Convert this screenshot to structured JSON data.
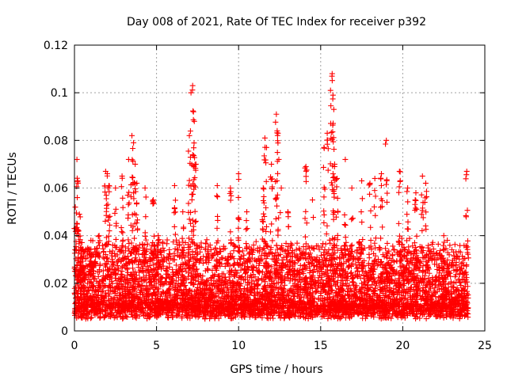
{
  "chart_data": {
    "type": "scatter",
    "title": "Day 008 of 2021, Rate Of TEC Index for receiver p392",
    "xlabel": "GPS time / hours",
    "ylabel": "ROTI / TECUs",
    "xlim": [
      0,
      25
    ],
    "ylim": [
      0,
      0.12
    ],
    "xticks": [
      0,
      5,
      10,
      15,
      20,
      25
    ],
    "xtick_labels": [
      "0",
      "5",
      "10",
      "15",
      "20",
      "25"
    ],
    "yticks": [
      0,
      0.02,
      0.04,
      0.06,
      0.08,
      0.1,
      0.12
    ],
    "ytick_labels": [
      "0",
      "0.02",
      "0.04",
      "0.06",
      "0.08",
      "0.1",
      "0.12"
    ],
    "grid": true,
    "marker": "+",
    "color": "#ff0000",
    "series": [
      {
        "name": "ROTI",
        "points": [
          [
            0.05,
            0.052
          ],
          [
            0.15,
            0.072
          ],
          [
            0.2,
            0.063
          ],
          [
            0.3,
            0.049
          ],
          [
            0.4,
            0.035
          ],
          [
            1.0,
            0.038
          ],
          [
            1.5,
            0.04
          ],
          [
            1.9,
            0.067
          ],
          [
            2.0,
            0.066
          ],
          [
            2.1,
            0.061
          ],
          [
            2.5,
            0.06
          ],
          [
            2.9,
            0.065
          ],
          [
            3.3,
            0.072
          ],
          [
            3.5,
            0.082
          ],
          [
            3.6,
            0.079
          ],
          [
            3.7,
            0.07
          ],
          [
            3.8,
            0.062
          ],
          [
            4.3,
            0.06
          ],
          [
            4.8,
            0.055
          ],
          [
            5.1,
            0.04
          ],
          [
            6.1,
            0.061
          ],
          [
            6.6,
            0.05
          ],
          [
            7.0,
            0.082
          ],
          [
            7.1,
            0.1
          ],
          [
            7.2,
            0.103
          ],
          [
            7.25,
            0.092
          ],
          [
            7.3,
            0.088
          ],
          [
            7.4,
            0.07
          ],
          [
            8.7,
            0.061
          ],
          [
            9.5,
            0.06
          ],
          [
            10.0,
            0.066
          ],
          [
            10.5,
            0.05
          ],
          [
            11.5,
            0.06
          ],
          [
            11.6,
            0.081
          ],
          [
            11.7,
            0.077
          ],
          [
            12.0,
            0.07
          ],
          [
            12.3,
            0.091
          ],
          [
            12.35,
            0.084
          ],
          [
            12.4,
            0.083
          ],
          [
            12.6,
            0.06
          ],
          [
            13.0,
            0.05
          ],
          [
            14.1,
            0.069
          ],
          [
            14.5,
            0.055
          ],
          [
            15.2,
            0.077
          ],
          [
            15.4,
            0.083
          ],
          [
            15.6,
            0.101
          ],
          [
            15.7,
            0.108
          ],
          [
            15.75,
            0.099
          ],
          [
            15.8,
            0.093
          ],
          [
            15.85,
            0.07
          ],
          [
            16.0,
            0.064
          ],
          [
            16.5,
            0.072
          ],
          [
            16.9,
            0.06
          ],
          [
            17.5,
            0.063
          ],
          [
            18.0,
            0.062
          ],
          [
            18.3,
            0.064
          ],
          [
            18.7,
            0.066
          ],
          [
            19.0,
            0.08
          ],
          [
            19.8,
            0.067
          ],
          [
            20.3,
            0.06
          ],
          [
            20.8,
            0.058
          ],
          [
            21.2,
            0.065
          ],
          [
            21.4,
            0.062
          ],
          [
            22.5,
            0.04
          ],
          [
            23.9,
            0.067
          ]
        ]
      }
    ]
  }
}
